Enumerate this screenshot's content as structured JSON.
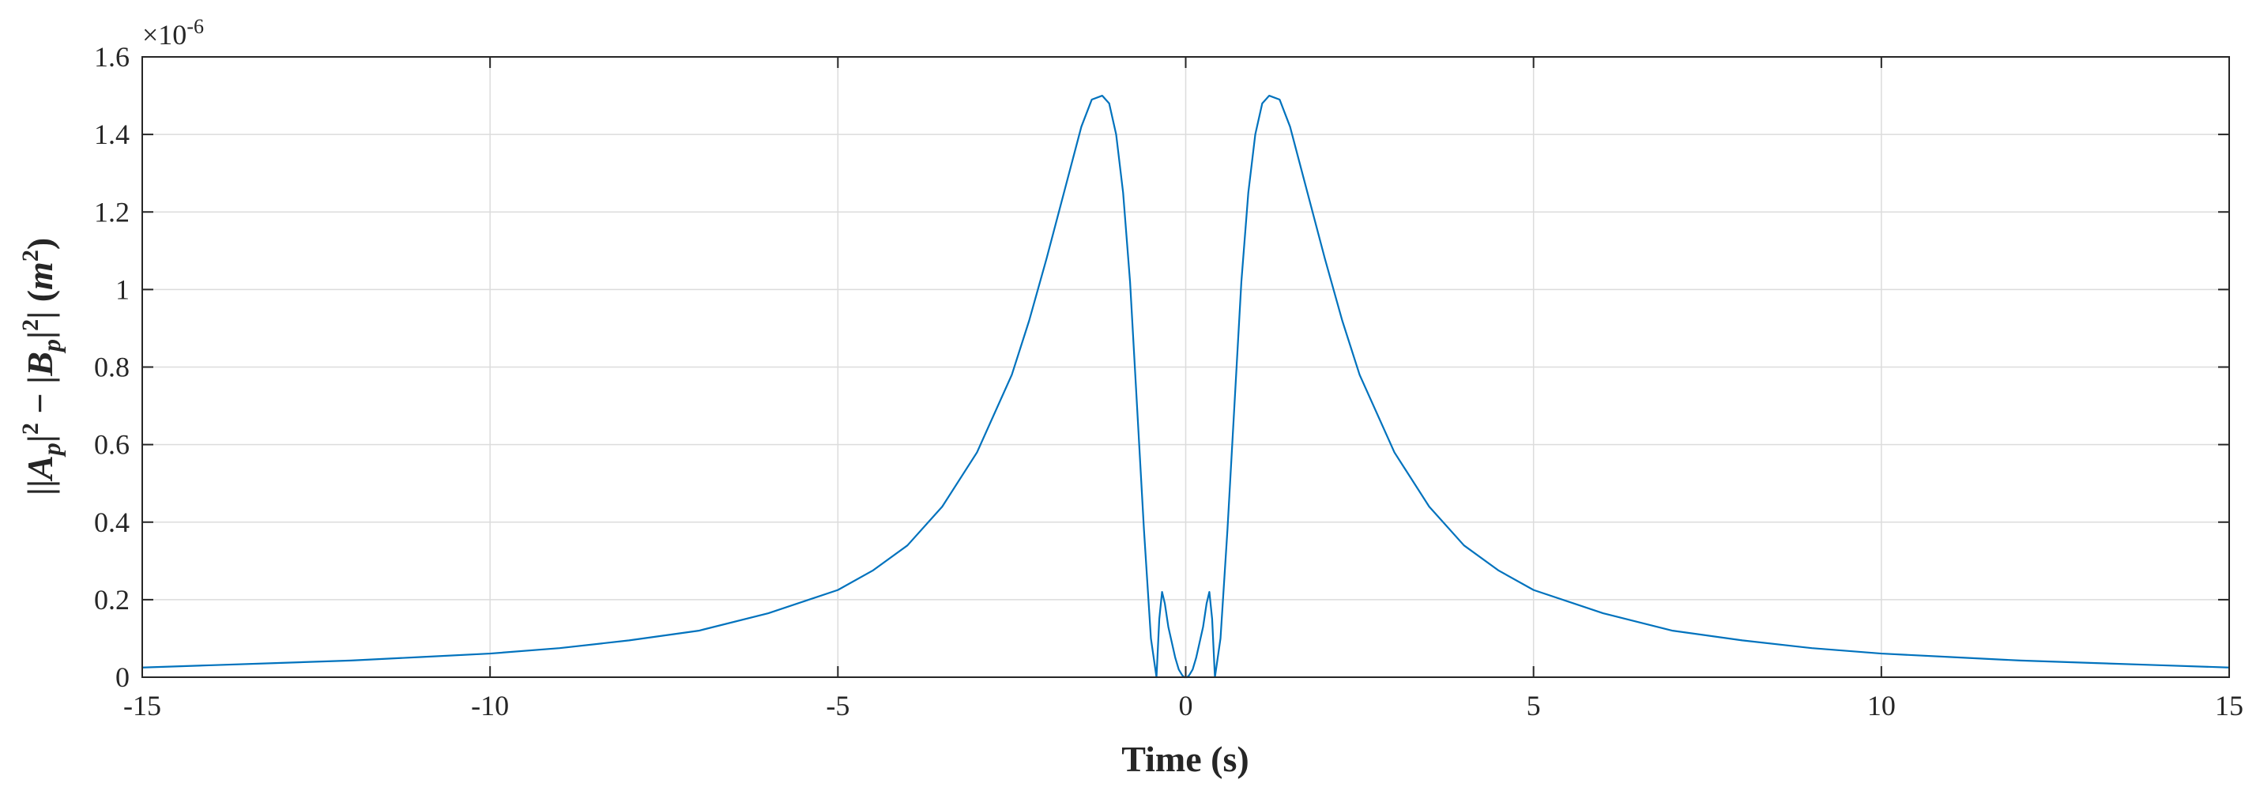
{
  "chart_data": {
    "type": "line",
    "title": "",
    "xlabel": "Time (s)",
    "ylabel": "||A_p|² − |B_p|²| (m²)",
    "ylabel_parts": {
      "open": "||",
      "a": "A",
      "a_sub": "p",
      "sq1": "2",
      "minus": " − |",
      "b": "B",
      "b_sub": "p",
      "sq2": "2",
      "close": "| (",
      "m": "m",
      "sq3": "2",
      "end": ")"
    },
    "xlim": [
      -15,
      15
    ],
    "ylim": [
      0,
      1.6e-06
    ],
    "y_exponent_label": "×10",
    "y_exponent_power": "-6",
    "x_ticks": [
      -15,
      -10,
      -5,
      0,
      5,
      10,
      15
    ],
    "x_tick_labels": [
      "-15",
      "-10",
      "-5",
      "0",
      "5",
      "10",
      "15"
    ],
    "y_ticks": [
      0,
      0.2,
      0.4,
      0.6,
      0.8,
      1.0,
      1.2,
      1.4,
      1.6
    ],
    "y_tick_labels": [
      "0",
      "0.2",
      "0.4",
      "0.6",
      "0.8",
      "1",
      "1.2",
      "1.4",
      "1.6"
    ],
    "grid": true,
    "line_color": "#0072BD",
    "series": [
      {
        "x": [
          -15,
          -14,
          -13,
          -12,
          -11,
          -10,
          -9,
          -8,
          -7,
          -6,
          -5,
          -4.5,
          -4,
          -3.5,
          -3,
          -2.5,
          -2.25,
          -2,
          -1.75,
          -1.5,
          -1.35,
          -1.2,
          -1.1,
          -1.0,
          -0.9,
          -0.8,
          -0.7,
          -0.6,
          -0.5,
          -0.42,
          -0.38,
          -0.34,
          -0.3,
          -0.25,
          -0.2,
          -0.15,
          -0.1,
          -0.05,
          -0.02,
          0,
          0.02,
          0.05,
          0.1,
          0.15,
          0.2,
          0.25,
          0.3,
          0.34,
          0.38,
          0.42,
          0.5,
          0.6,
          0.7,
          0.8,
          0.9,
          1.0,
          1.1,
          1.2,
          1.35,
          1.5,
          1.75,
          2,
          2.25,
          2.5,
          3,
          3.5,
          4,
          4.5,
          5,
          6,
          7,
          8,
          9,
          10,
          11,
          12,
          13,
          14,
          15
        ],
        "y": [
          0.025,
          0.031,
          0.037,
          0.043,
          0.052,
          0.061,
          0.075,
          0.095,
          0.12,
          0.165,
          0.225,
          0.275,
          0.34,
          0.44,
          0.58,
          0.78,
          0.92,
          1.08,
          1.25,
          1.42,
          1.49,
          1.5,
          1.48,
          1.4,
          1.25,
          1.02,
          0.7,
          0.38,
          0.1,
          0.0,
          0.15,
          0.22,
          0.19,
          0.13,
          0.09,
          0.05,
          0.02,
          0.005,
          0.0,
          0.0,
          0.0,
          0.005,
          0.02,
          0.05,
          0.09,
          0.13,
          0.19,
          0.22,
          0.15,
          0.0,
          0.1,
          0.38,
          0.7,
          1.02,
          1.25,
          1.4,
          1.48,
          1.5,
          1.49,
          1.42,
          1.25,
          1.08,
          0.92,
          0.78,
          0.58,
          0.44,
          0.34,
          0.275,
          0.225,
          0.165,
          0.12,
          0.095,
          0.075,
          0.061,
          0.052,
          0.043,
          0.037,
          0.031,
          0.025
        ],
        "y_units": "1e-6 m^2"
      }
    ]
  }
}
